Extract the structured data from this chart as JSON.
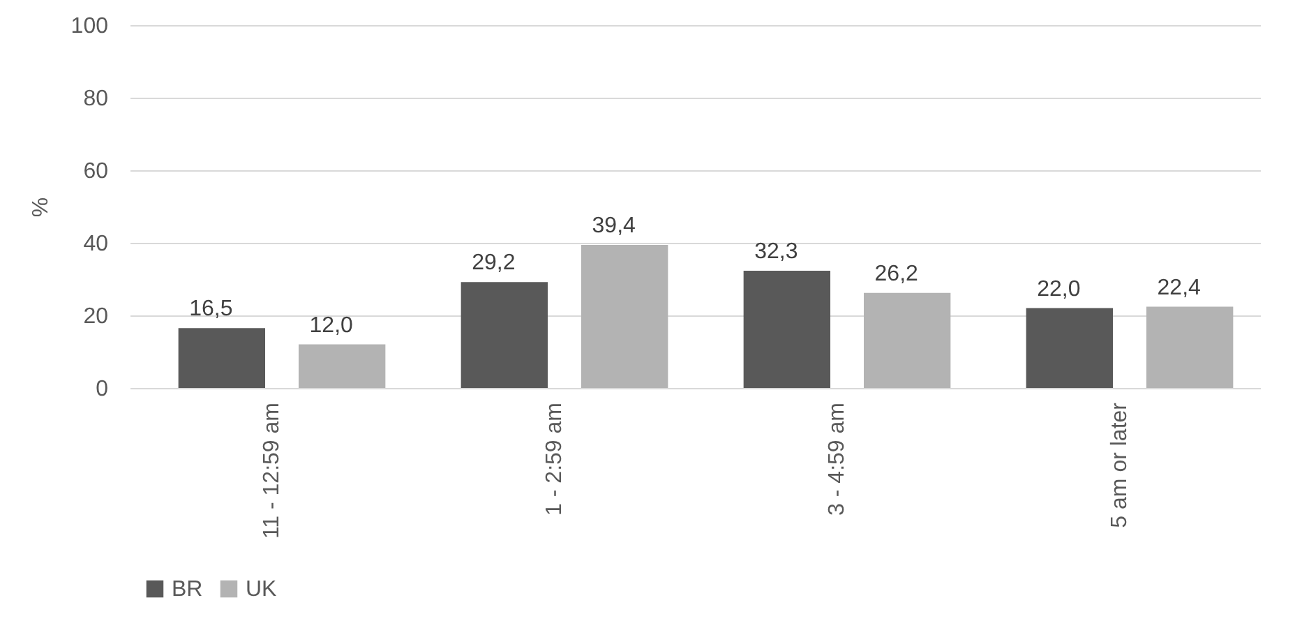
{
  "chart_data": {
    "type": "bar",
    "ylabel": "%",
    "categories": [
      "11 - 12:59 am",
      "1 - 2:59 am",
      "3 - 4:59 am",
      "5 am or later"
    ],
    "series": [
      {
        "name": "BR",
        "color": "#595959",
        "values": [
          16.5,
          29.2,
          32.3,
          22.0
        ],
        "value_labels": [
          "16,5",
          "29,2",
          "32,3",
          "22,0"
        ]
      },
      {
        "name": "UK",
        "color": "#b3b3b3",
        "values": [
          12.0,
          39.4,
          26.2,
          22.4
        ],
        "value_labels": [
          "12,0",
          "39,4",
          "26,2",
          "22,4"
        ]
      }
    ],
    "ylim": [
      0,
      100
    ],
    "yticks": [
      0,
      20,
      40,
      60,
      80,
      100
    ],
    "grid": "y",
    "legend": "bottom"
  }
}
